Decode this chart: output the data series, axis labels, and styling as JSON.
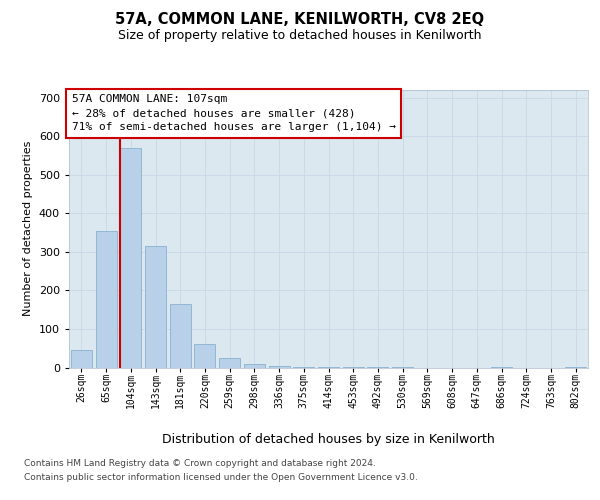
{
  "title": "57A, COMMON LANE, KENILWORTH, CV8 2EQ",
  "subtitle": "Size of property relative to detached houses in Kenilworth",
  "xlabel": "Distribution of detached houses by size in Kenilworth",
  "ylabel": "Number of detached properties",
  "categories": [
    "26sqm",
    "65sqm",
    "104sqm",
    "143sqm",
    "181sqm",
    "220sqm",
    "259sqm",
    "298sqm",
    "336sqm",
    "375sqm",
    "414sqm",
    "453sqm",
    "492sqm",
    "530sqm",
    "569sqm",
    "608sqm",
    "647sqm",
    "686sqm",
    "724sqm",
    "763sqm",
    "802sqm"
  ],
  "values": [
    45,
    355,
    570,
    315,
    165,
    60,
    25,
    10,
    5,
    2,
    2,
    1,
    1,
    1,
    0,
    0,
    0,
    1,
    0,
    0,
    1
  ],
  "bar_color": "#b8d0e8",
  "bar_edge_color": "#7aaaca",
  "property_line_color": "#cc0000",
  "annotation_text": "57A COMMON LANE: 107sqm\n← 28% of detached houses are smaller (428)\n71% of semi-detached houses are larger (1,104) →",
  "ylim": [
    0,
    720
  ],
  "yticks": [
    0,
    100,
    200,
    300,
    400,
    500,
    600,
    700
  ],
  "grid_color": "#c8d8e8",
  "bg_color": "#dce8f0",
  "footer_line1": "Contains HM Land Registry data © Crown copyright and database right 2024.",
  "footer_line2": "Contains public sector information licensed under the Open Government Licence v3.0.",
  "title_fontsize": 10.5,
  "subtitle_fontsize": 9,
  "annotation_fontsize": 8,
  "ylabel_fontsize": 8,
  "xlabel_fontsize": 9,
  "footer_fontsize": 6.5,
  "tick_fontsize": 7
}
